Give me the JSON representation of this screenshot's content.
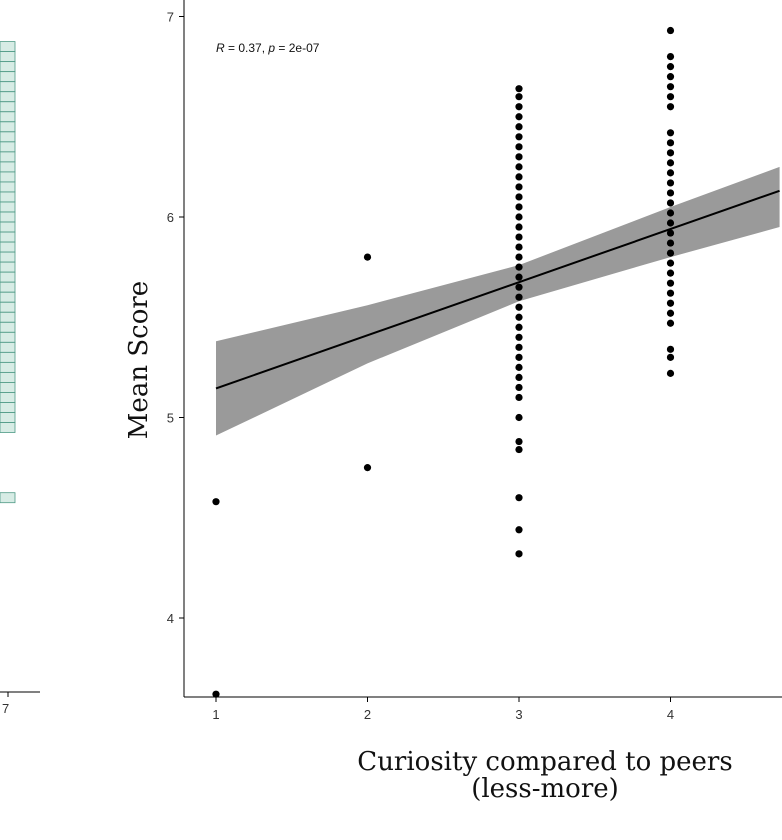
{
  "chart_data": [
    {
      "type": "strip",
      "x_ticks": [
        "7"
      ],
      "points": [
        {
          "y": 6.85
        },
        {
          "y": 6.8
        },
        {
          "y": 6.75
        },
        {
          "y": 6.7
        },
        {
          "y": 6.65
        },
        {
          "y": 6.6
        },
        {
          "y": 6.55
        },
        {
          "y": 6.5
        },
        {
          "y": 6.45
        },
        {
          "y": 6.4
        },
        {
          "y": 6.35
        },
        {
          "y": 6.3
        },
        {
          "y": 6.25
        },
        {
          "y": 6.2
        },
        {
          "y": 6.15
        },
        {
          "y": 6.1
        },
        {
          "y": 6.05
        },
        {
          "y": 6.0
        },
        {
          "y": 5.95
        },
        {
          "y": 5.9
        },
        {
          "y": 5.85
        },
        {
          "y": 5.8
        },
        {
          "y": 5.75
        },
        {
          "y": 5.7
        },
        {
          "y": 5.65
        },
        {
          "y": 5.6
        },
        {
          "y": 5.55
        },
        {
          "y": 5.5
        },
        {
          "y": 5.45
        },
        {
          "y": 5.4
        },
        {
          "y": 5.35
        },
        {
          "y": 5.3
        },
        {
          "y": 5.25
        },
        {
          "y": 5.2
        },
        {
          "y": 5.15
        },
        {
          "y": 5.1
        },
        {
          "y": 5.05
        },
        {
          "y": 5.0
        },
        {
          "y": 4.95
        },
        {
          "y": 4.6
        }
      ],
      "colors": {
        "fill": "#b6dcd0",
        "stroke": "#4f9a86"
      }
    },
    {
      "type": "scatter",
      "xlabel": "Curiosity compared to peers\n(less-more)",
      "ylabel": "Mean Score",
      "annotation": {
        "r_label": "R",
        "r_value": " = 0.37, ",
        "p_label": "p",
        "p_value": " = 2e-07"
      },
      "x_ticks": [
        1,
        2,
        3,
        4
      ],
      "y_ticks": [
        4,
        5,
        6,
        7
      ],
      "xlim": [
        0.9,
        4.72
      ],
      "ylim": [
        3.45,
        7.05
      ],
      "regression": {
        "intercept": 4.88,
        "slope": 0.265
      },
      "confidence_band": [
        {
          "x": 1,
          "lo": 4.91,
          "hi": 5.38
        },
        {
          "x": 2,
          "lo": 5.27,
          "hi": 5.56
        },
        {
          "x": 3,
          "lo": 5.58,
          "hi": 5.76
        },
        {
          "x": 4,
          "lo": 5.8,
          "hi": 6.05
        },
        {
          "x": 4.72,
          "lo": 5.95,
          "hi": 6.25
        }
      ],
      "points": [
        {
          "x": 1,
          "y": 4.58
        },
        {
          "x": 1,
          "y": 3.62
        },
        {
          "x": 2,
          "y": 5.8
        },
        {
          "x": 2,
          "y": 4.75
        },
        {
          "x": 3,
          "y": 6.64
        },
        {
          "x": 3,
          "y": 6.6
        },
        {
          "x": 3,
          "y": 6.55
        },
        {
          "x": 3,
          "y": 6.5
        },
        {
          "x": 3,
          "y": 6.45
        },
        {
          "x": 3,
          "y": 6.4
        },
        {
          "x": 3,
          "y": 6.35
        },
        {
          "x": 3,
          "y": 6.3
        },
        {
          "x": 3,
          "y": 6.25
        },
        {
          "x": 3,
          "y": 6.2
        },
        {
          "x": 3,
          "y": 6.15
        },
        {
          "x": 3,
          "y": 6.1
        },
        {
          "x": 3,
          "y": 6.05
        },
        {
          "x": 3,
          "y": 6.0
        },
        {
          "x": 3,
          "y": 5.95
        },
        {
          "x": 3,
          "y": 5.9
        },
        {
          "x": 3,
          "y": 5.85
        },
        {
          "x": 3,
          "y": 5.8
        },
        {
          "x": 3,
          "y": 5.75
        },
        {
          "x": 3,
          "y": 5.7
        },
        {
          "x": 3,
          "y": 5.65
        },
        {
          "x": 3,
          "y": 5.6
        },
        {
          "x": 3,
          "y": 5.55
        },
        {
          "x": 3,
          "y": 5.5
        },
        {
          "x": 3,
          "y": 5.45
        },
        {
          "x": 3,
          "y": 5.4
        },
        {
          "x": 3,
          "y": 5.35
        },
        {
          "x": 3,
          "y": 5.3
        },
        {
          "x": 3,
          "y": 5.25
        },
        {
          "x": 3,
          "y": 5.2
        },
        {
          "x": 3,
          "y": 5.15
        },
        {
          "x": 3,
          "y": 5.1
        },
        {
          "x": 3,
          "y": 5.0
        },
        {
          "x": 3,
          "y": 4.88
        },
        {
          "x": 3,
          "y": 4.84
        },
        {
          "x": 3,
          "y": 4.6
        },
        {
          "x": 3,
          "y": 4.44
        },
        {
          "x": 3,
          "y": 4.32
        },
        {
          "x": 4,
          "y": 6.93
        },
        {
          "x": 4,
          "y": 6.8
        },
        {
          "x": 4,
          "y": 6.75
        },
        {
          "x": 4,
          "y": 6.7
        },
        {
          "x": 4,
          "y": 6.65
        },
        {
          "x": 4,
          "y": 6.6
        },
        {
          "x": 4,
          "y": 6.55
        },
        {
          "x": 4,
          "y": 6.42
        },
        {
          "x": 4,
          "y": 6.37
        },
        {
          "x": 4,
          "y": 6.32
        },
        {
          "x": 4,
          "y": 6.27
        },
        {
          "x": 4,
          "y": 6.22
        },
        {
          "x": 4,
          "y": 6.17
        },
        {
          "x": 4,
          "y": 6.12
        },
        {
          "x": 4,
          "y": 6.07
        },
        {
          "x": 4,
          "y": 6.02
        },
        {
          "x": 4,
          "y": 5.97
        },
        {
          "x": 4,
          "y": 5.92
        },
        {
          "x": 4,
          "y": 5.87
        },
        {
          "x": 4,
          "y": 5.82
        },
        {
          "x": 4,
          "y": 5.77
        },
        {
          "x": 4,
          "y": 5.72
        },
        {
          "x": 4,
          "y": 5.67
        },
        {
          "x": 4,
          "y": 5.62
        },
        {
          "x": 4,
          "y": 5.57
        },
        {
          "x": 4,
          "y": 5.52
        },
        {
          "x": 4,
          "y": 5.47
        },
        {
          "x": 4,
          "y": 5.34
        },
        {
          "x": 4,
          "y": 5.3
        },
        {
          "x": 4,
          "y": 5.22
        }
      ],
      "colors": {
        "point": "#000000",
        "line": "#000000",
        "band": "#9a9a9a"
      }
    }
  ]
}
